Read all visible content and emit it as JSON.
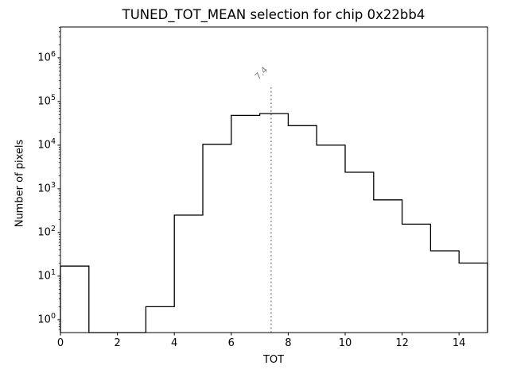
{
  "figure": {
    "background": "#ffffff"
  },
  "chart_data": {
    "type": "histogram-step",
    "title": "TUNED_TOT_MEAN selection for chip 0x22bb4",
    "xlabel": "TOT",
    "ylabel": "Number of pixels",
    "xscale": "linear",
    "yscale": "log",
    "xlim": [
      0,
      15
    ],
    "ylim": [
      0.51,
      5100000
    ],
    "grid": false,
    "legend": false,
    "line_color": "#000000",
    "axis_color": "#000000",
    "x_ticks": [
      0,
      2,
      4,
      6,
      8,
      10,
      12,
      14
    ],
    "y_ticks": [
      {
        "base": "10",
        "exp": "0"
      },
      {
        "base": "10",
        "exp": "1"
      },
      {
        "base": "10",
        "exp": "2"
      },
      {
        "base": "10",
        "exp": "3"
      },
      {
        "base": "10",
        "exp": "4"
      },
      {
        "base": "10",
        "exp": "5"
      },
      {
        "base": "10",
        "exp": "6"
      }
    ],
    "bin_edges": [
      0,
      1,
      2,
      3,
      4,
      5,
      6,
      7,
      8,
      9,
      10,
      11,
      12,
      13,
      14,
      15
    ],
    "counts": [
      17,
      0,
      0,
      2,
      250,
      10500,
      48000,
      53000,
      28000,
      10000,
      2400,
      560,
      155,
      38,
      20
    ],
    "vline": {
      "x": 7.4,
      "label": "7.4",
      "color": "#808080",
      "style": "dotted",
      "top_value": 240000
    }
  }
}
